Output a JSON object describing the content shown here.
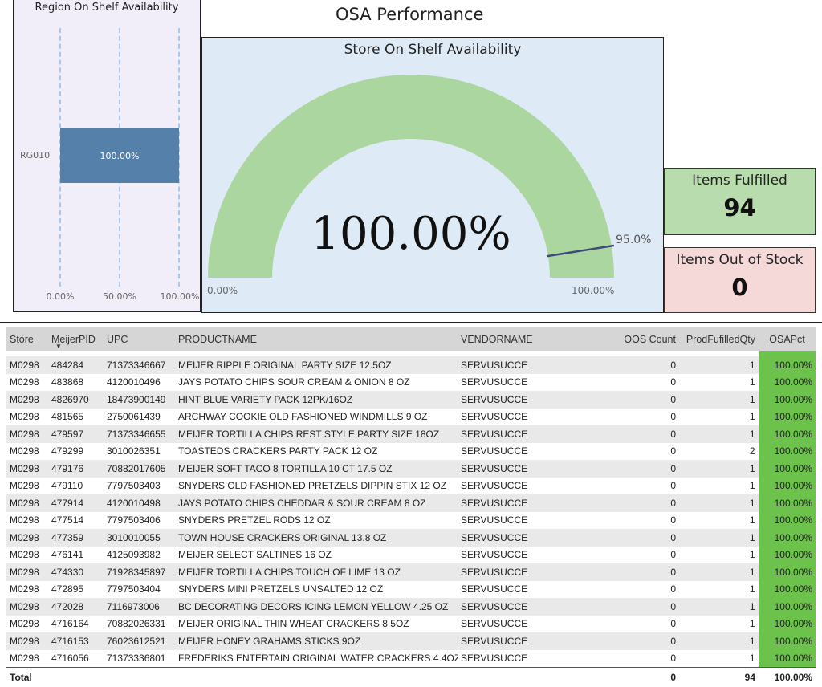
{
  "page": {
    "title": "OSA Performance"
  },
  "region_chart": {
    "title": "Region On Shelf Availability",
    "category": "RG010",
    "value": 100.0,
    "value_label": "100.00%",
    "ticks": [
      "0.00%",
      "50.00%",
      "100.00%"
    ],
    "grid_color": "#a9c8ee",
    "bar_color": "#5580aa"
  },
  "gauge": {
    "title": "Store On Shelf Availability",
    "value": 100.0,
    "value_label": "100.00%",
    "min_label": "0.00%",
    "max_label": "100.00%",
    "target": 95.0,
    "target_label": "95.0%",
    "fill_color": "#acd6a0"
  },
  "kpis": {
    "fulfilled": {
      "label": "Items Fulfilled",
      "value": "94"
    },
    "out_of_stock": {
      "label": "Items Out of Stock",
      "value": "0"
    }
  },
  "table": {
    "columns": [
      "Store",
      "MeijerPID",
      "UPC",
      "PRODUCTNAME",
      "VENDORNAME",
      "OOS Count",
      "ProdFufilledQty",
      "OSAPct"
    ],
    "rows": [
      [
        "M0298",
        "484284",
        "71373346667",
        "MEIJER RIPPLE ORIGINAL PARTY SIZE 12.5OZ",
        "SERVUSUCCE",
        "0",
        "1",
        "100.00%"
      ],
      [
        "M0298",
        "483868",
        "4120010496",
        "JAYS POTATO CHIPS SOUR CREAM & ONION 8 OZ",
        "SERVUSUCCE",
        "0",
        "1",
        "100.00%"
      ],
      [
        "M0298",
        "4826970",
        "18473900149",
        "HINT BLUE VARIETY PACK 12PK/16OZ",
        "SERVUSUCCE",
        "0",
        "1",
        "100.00%"
      ],
      [
        "M0298",
        "481565",
        "2750061439",
        "ARCHWAY COOKIE OLD FASHIONED WINDMILLS 9 OZ",
        "SERVUSUCCE",
        "0",
        "1",
        "100.00%"
      ],
      [
        "M0298",
        "479597",
        "71373346655",
        "MEIJER TORTILLA CHIPS REST STYLE PARTY SIZE 18OZ",
        "SERVUSUCCE",
        "0",
        "1",
        "100.00%"
      ],
      [
        "M0298",
        "479299",
        "3010026351",
        "TOASTEDS CRACKERS PARTY PACK 12 OZ",
        "SERVUSUCCE",
        "0",
        "2",
        "100.00%"
      ],
      [
        "M0298",
        "479176",
        "70882017605",
        "MEIJER SOFT TACO 8 TORTILLA 10 CT 17.5 OZ",
        "SERVUSUCCE",
        "0",
        "1",
        "100.00%"
      ],
      [
        "M0298",
        "479110",
        "7797503403",
        "SNYDERS OLD FASHIONED PRETZELS DIPPIN STIX 12 OZ",
        "SERVUSUCCE",
        "0",
        "1",
        "100.00%"
      ],
      [
        "M0298",
        "477914",
        "4120010498",
        "JAYS POTATO CHIPS CHEDDAR & SOUR CREAM 8 OZ",
        "SERVUSUCCE",
        "0",
        "1",
        "100.00%"
      ],
      [
        "M0298",
        "477514",
        "7797503406",
        "SNYDERS PRETZEL RODS 12 OZ",
        "SERVUSUCCE",
        "0",
        "1",
        "100.00%"
      ],
      [
        "M0298",
        "477359",
        "3010010055",
        "TOWN HOUSE CRACKERS ORIGINAL 13.8 OZ",
        "SERVUSUCCE",
        "0",
        "1",
        "100.00%"
      ],
      [
        "M0298",
        "476141",
        "4125093982",
        "MEIJER SELECT SALTINES 16 OZ",
        "SERVUSUCCE",
        "0",
        "1",
        "100.00%"
      ],
      [
        "M0298",
        "474330",
        "71928345897",
        "MEIJER TORTILLA CHIPS TOUCH OF LIME 13 OZ",
        "SERVUSUCCE",
        "0",
        "1",
        "100.00%"
      ],
      [
        "M0298",
        "472895",
        "7797503404",
        "SNYDERS MINI PRETZELS UNSALTED 12 OZ",
        "SERVUSUCCE",
        "0",
        "1",
        "100.00%"
      ],
      [
        "M0298",
        "472028",
        "7116973006",
        "BC DECORATING DECORS ICING LEMON YELLOW 4.25 OZ",
        "SERVUSUCCE",
        "0",
        "1",
        "100.00%"
      ],
      [
        "M0298",
        "4716164",
        "70882026331",
        "MEIJER ORIGINAL THIN WHEAT CRACKERS 8.5OZ",
        "SERVUSUCCE",
        "0",
        "1",
        "100.00%"
      ],
      [
        "M0298",
        "4716153",
        "76023612521",
        "MEIJER HONEY GRAHAMS STICKS 9OZ",
        "SERVUSUCCE",
        "0",
        "1",
        "100.00%"
      ],
      [
        "M0298",
        "4716056",
        "71373336801",
        "FREDERIKS ENTERTAIN ORIGINAL WATER CRACKERS 4.4OZ",
        "SERVUSUCCE",
        "0",
        "1",
        "100.00%"
      ]
    ],
    "total": {
      "label": "Total",
      "oos_count": "0",
      "fulfilled_qty": "94",
      "osa_pct": "100.00%"
    },
    "sort_icon": "sort-descending-icon",
    "pct_cell_color": "#6cc24a"
  }
}
